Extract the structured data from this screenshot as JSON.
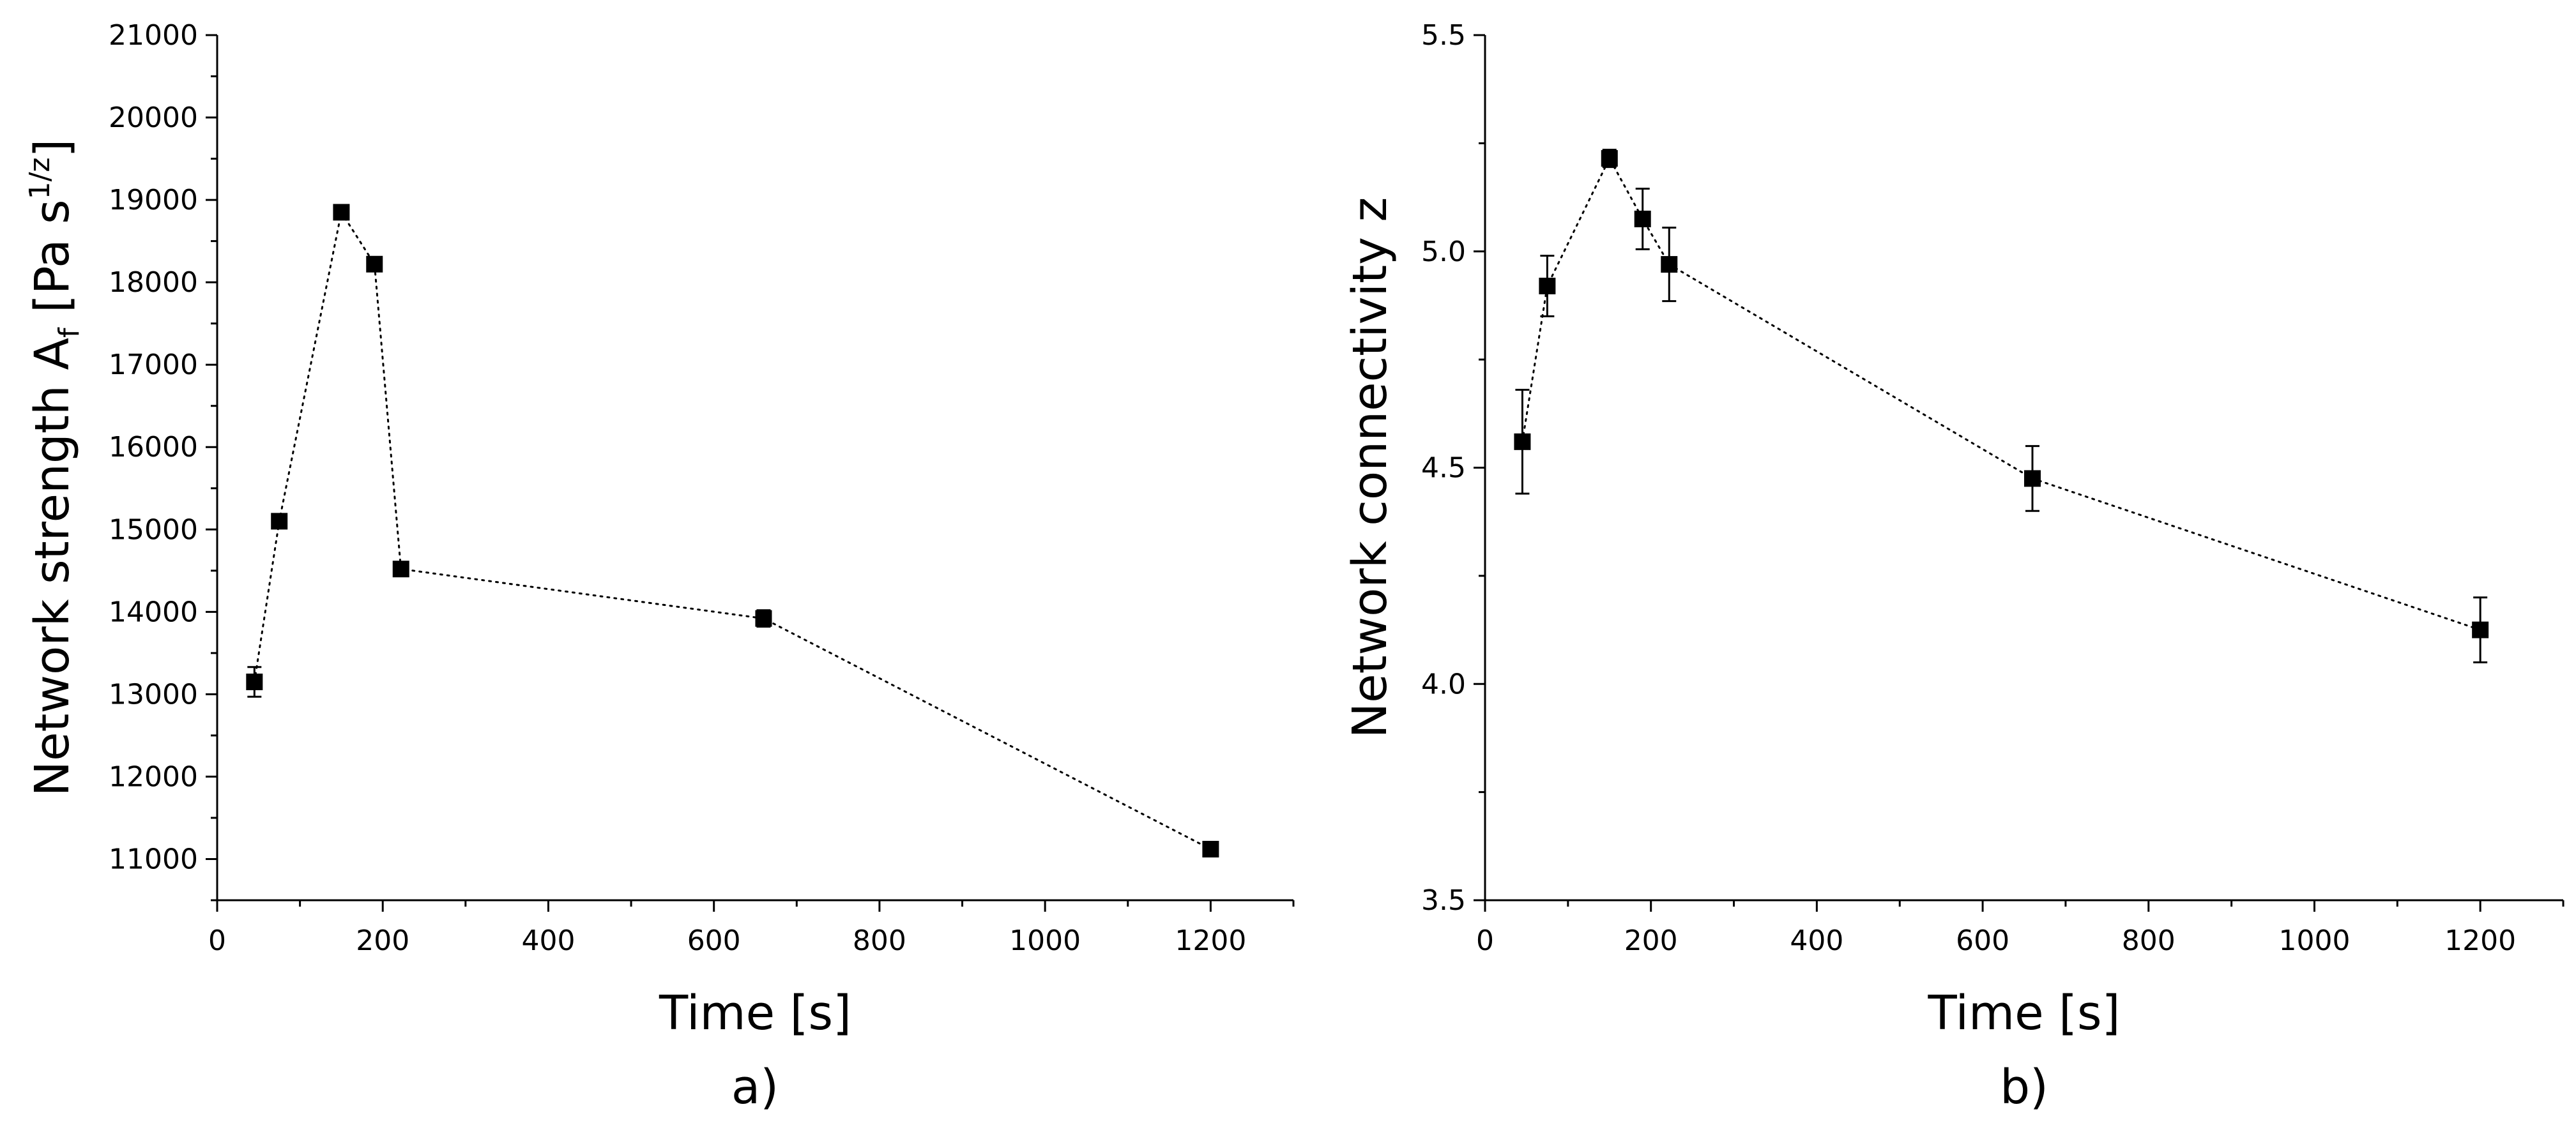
{
  "chart_data": [
    {
      "type": "scatter",
      "panel_label": "a)",
      "xlabel": "Time [s]",
      "ylabel": {
        "prefix": "Network strength A",
        "subscript": "f",
        "middle": " [Pa s",
        "superscript": "1/z",
        "suffix": "]"
      },
      "xlim": [
        0,
        1300
      ],
      "ylim": [
        10500,
        21000
      ],
      "xticks": [
        0,
        200,
        400,
        600,
        800,
        1000,
        1200
      ],
      "yticks": [
        11000,
        12000,
        13000,
        14000,
        15000,
        16000,
        17000,
        18000,
        19000,
        20000,
        21000
      ],
      "line_style": "dotted",
      "series": [
        {
          "name": "Network strength",
          "x": [
            45,
            75,
            150,
            190,
            222,
            660,
            1200
          ],
          "y": [
            13150,
            15100,
            18850,
            18220,
            14520,
            13920,
            11120
          ],
          "err": [
            180,
            0,
            0,
            0,
            80,
            100,
            70
          ]
        }
      ]
    },
    {
      "type": "scatter",
      "panel_label": "b)",
      "xlabel": "Time [s]",
      "ylabel": {
        "prefix": "Network connectivity z",
        "subscript": "",
        "middle": "",
        "superscript": "",
        "suffix": ""
      },
      "xlim": [
        0,
        1300
      ],
      "ylim": [
        3.5,
        5.5
      ],
      "xticks": [
        0,
        200,
        400,
        600,
        800,
        1000,
        1200
      ],
      "yticks": [
        3.5,
        4.0,
        4.5,
        5.0,
        5.5
      ],
      "ytick_labels": [
        "3.5",
        "4.0",
        "4.5",
        "5.0",
        "5.5"
      ],
      "line_style": "dotted",
      "series": [
        {
          "name": "Network connectivity",
          "x": [
            45,
            75,
            150,
            190,
            222,
            660,
            1200
          ],
          "y": [
            4.56,
            4.92,
            5.215,
            5.075,
            4.97,
            4.475,
            4.125
          ],
          "err": [
            0.12,
            0.07,
            0.02,
            0.07,
            0.085,
            0.075,
            0.075
          ]
        }
      ]
    }
  ]
}
